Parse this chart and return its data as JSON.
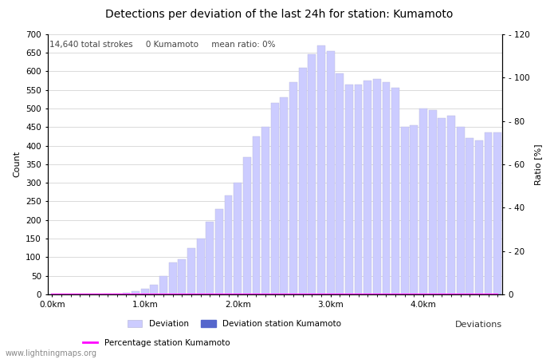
{
  "title": "Detections per deviation of the last 24h for station: Kumamoto",
  "subtitle": "14,640 total strokes     0 Kumamoto     mean ratio: 0%",
  "xlabel": "Deviations",
  "ylabel_left": "Count",
  "ylabel_right": "Ratio [%]",
  "ylim_left": [
    0,
    700
  ],
  "ylim_right": [
    0,
    120
  ],
  "yticks_left": [
    0,
    50,
    100,
    150,
    200,
    250,
    300,
    350,
    400,
    450,
    500,
    550,
    600,
    650,
    700
  ],
  "yticks_right": [
    0,
    20,
    40,
    60,
    80,
    100,
    120
  ],
  "ytick_right_labels": [
    "0",
    "- 20",
    "- 40",
    "- 60",
    "- 80",
    "- 100",
    "- 120"
  ],
  "xtick_labels": [
    "0.0km",
    "1.0km",
    "2.0km",
    "3.0km",
    "4.0km"
  ],
  "xtick_positions": [
    0,
    10,
    20,
    30,
    40
  ],
  "bar_width": 0.85,
  "bar_color_light": "#ccccff",
  "bar_color_dark": "#5566cc",
  "bar_edge_color": "#bbbbdd",
  "line_color": "#ff00ff",
  "bar_values": [
    0,
    0,
    0,
    0,
    0,
    1,
    2,
    3,
    5,
    8,
    15,
    25,
    50,
    85,
    95,
    125,
    150,
    195,
    230,
    265,
    300,
    370,
    425,
    450,
    515,
    530,
    570,
    610,
    645,
    670,
    655,
    595,
    565,
    565,
    575,
    580,
    570,
    555,
    450,
    455,
    500,
    495,
    475,
    480,
    450,
    420,
    415,
    435,
    435
  ],
  "station_bar_values": [
    0,
    0,
    0,
    0,
    0,
    0,
    0,
    0,
    0,
    0,
    0,
    0,
    0,
    0,
    0,
    0,
    0,
    0,
    0,
    0,
    0,
    0,
    0,
    0,
    0,
    0,
    0,
    0,
    0,
    0,
    0,
    0,
    0,
    0,
    0,
    0,
    0,
    0,
    0,
    0,
    0,
    0,
    0,
    0,
    0,
    0,
    0,
    0,
    0
  ],
  "ratio_values": [
    0,
    0,
    0,
    0,
    0,
    0,
    0,
    0,
    0,
    0,
    0,
    0,
    0,
    0,
    0,
    0,
    0,
    0,
    0,
    0,
    0,
    0,
    0,
    0,
    0,
    0,
    0,
    0,
    0,
    0,
    0,
    0,
    0,
    0,
    0,
    0,
    0,
    0,
    0,
    0,
    0,
    0,
    0,
    0,
    0,
    0,
    0,
    0,
    0
  ],
  "watermark": "www.lightningmaps.org",
  "bg_color": "#ffffff",
  "grid_color": "#cccccc",
  "title_fontsize": 10,
  "subtitle_fontsize": 7.5,
  "axis_fontsize": 8,
  "tick_fontsize": 7.5,
  "watermark_fontsize": 7
}
